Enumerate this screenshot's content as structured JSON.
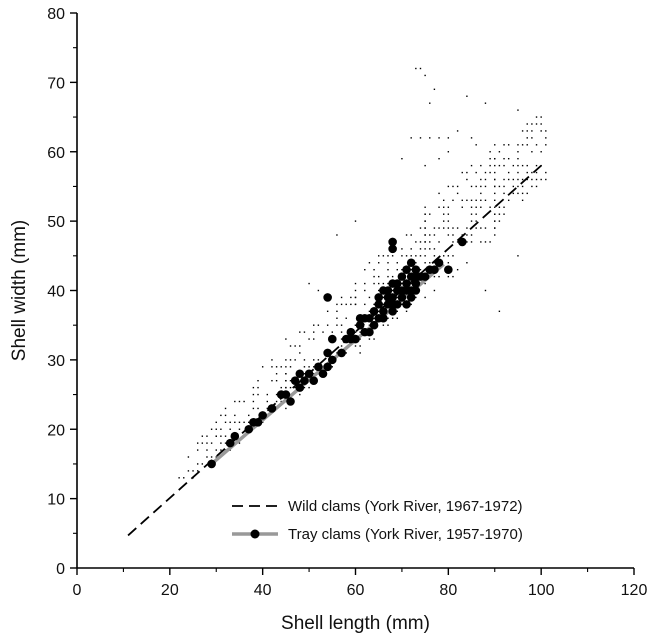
{
  "chart_data": {
    "type": "scatter",
    "title": "",
    "xlabel": "Shell length (mm)",
    "ylabel": "Shell width (mm)",
    "xlim": [
      0,
      120
    ],
    "ylim": [
      0,
      80
    ],
    "xticks": [
      0,
      20,
      40,
      60,
      80,
      100,
      120
    ],
    "yticks": [
      0,
      10,
      20,
      30,
      40,
      50,
      60,
      70,
      80
    ],
    "grid": false,
    "legend_position": "bottom-right",
    "colors": {
      "axis": "#000000",
      "points": "#000000",
      "tray_line": "#999999",
      "wild_line": "#000000"
    },
    "series": [
      {
        "name": "Wild clams (York River, 1967-1972)",
        "kind": "scatter-dots-with-dashed-fit",
        "fit_line": {
          "x": [
            11,
            100
          ],
          "y": [
            4.7,
            58
          ]
        },
        "point_bands": [
          {
            "x_range": [
              22,
              30
            ],
            "y_center_at_x0": 13.5,
            "slope": 0.6,
            "y_spread": 2.0
          },
          {
            "x_range": [
              30,
              45
            ],
            "y_center_at_x0": 18.3,
            "slope": 0.6,
            "y_spread": 3.0
          },
          {
            "x_range": [
              45,
              60
            ],
            "y_center_at_x0": 27.3,
            "slope": 0.6,
            "y_spread": 4.0
          },
          {
            "x_range": [
              60,
              75
            ],
            "y_center_at_x0": 36.3,
            "slope": 0.6,
            "y_spread": 5.5
          },
          {
            "x_range": [
              75,
              90
            ],
            "y_center_at_x0": 45.3,
            "slope": 0.6,
            "y_spread": 6.5
          },
          {
            "x_range": [
              90,
              101
            ],
            "y_center_at_x0": 54.3,
            "slope": 0.6,
            "y_spread": 5.0
          }
        ],
        "outliers": [
          [
            73,
            72
          ],
          [
            74,
            72
          ],
          [
            75,
            71
          ],
          [
            77,
            69
          ],
          [
            76,
            67
          ],
          [
            84,
            68
          ],
          [
            88,
            67
          ],
          [
            95,
            66
          ],
          [
            72,
            62
          ],
          [
            74,
            62
          ],
          [
            76,
            62
          ],
          [
            78,
            62
          ],
          [
            80,
            62
          ],
          [
            82,
            63
          ],
          [
            85,
            62
          ],
          [
            86,
            61
          ],
          [
            70,
            59
          ],
          [
            75,
            58
          ],
          [
            78,
            59
          ],
          [
            80,
            60
          ],
          [
            60,
            50
          ],
          [
            56,
            48
          ],
          [
            52,
            40
          ],
          [
            50,
            41
          ],
          [
            48,
            34
          ],
          [
            40,
            29
          ],
          [
            42,
            30
          ],
          [
            45,
            33
          ],
          [
            38,
            26
          ],
          [
            91,
            37
          ],
          [
            88,
            40
          ],
          [
            95,
            45
          ]
        ]
      },
      {
        "name": "Tray clams (York River, 1957-1970)",
        "kind": "markers-with-solid-fit",
        "fit_line": {
          "x": [
            29,
            79
          ],
          "y": [
            15,
            43.8
          ]
        },
        "x": [
          29,
          33,
          34,
          37,
          38,
          39,
          40,
          42,
          44,
          45,
          46,
          47,
          48,
          48,
          49,
          50,
          51,
          52,
          53,
          54,
          54,
          55,
          55,
          57,
          58,
          59,
          59,
          60,
          61,
          61,
          62,
          63,
          63,
          64,
          64,
          65,
          65,
          65,
          66,
          66,
          66,
          67,
          67,
          67,
          68,
          68,
          68,
          68,
          69,
          69,
          69,
          70,
          70,
          70,
          71,
          71,
          71,
          71,
          72,
          72,
          72,
          72,
          73,
          73,
          73,
          73,
          74,
          75,
          76,
          77,
          78,
          80,
          83,
          68,
          68,
          54,
          62
        ],
        "y": [
          15,
          18,
          19,
          20,
          21,
          21,
          22,
          23,
          25,
          25,
          24,
          27,
          26,
          28,
          27,
          28,
          27,
          29,
          28,
          31,
          29,
          30,
          33,
          31,
          33,
          33,
          34,
          33,
          35,
          36,
          34,
          34,
          36,
          35,
          37,
          36,
          38,
          39,
          36,
          37,
          40,
          38,
          39,
          40,
          37,
          38,
          41,
          39,
          38,
          40,
          41,
          39,
          42,
          40,
          38,
          41,
          43,
          40,
          39,
          42,
          40,
          44,
          40,
          42,
          41,
          43,
          42,
          42,
          43,
          43,
          44,
          43,
          47,
          46,
          47,
          39,
          36
        ]
      }
    ]
  }
}
